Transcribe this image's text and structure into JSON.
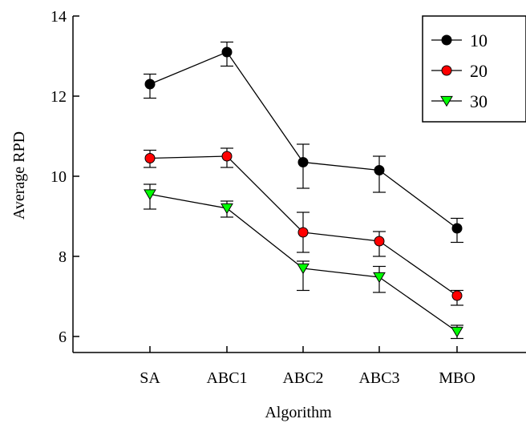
{
  "chart_data": {
    "type": "line",
    "xlabel": "Algorithm",
    "ylabel": "Average RPD",
    "categories": [
      "SA",
      "ABC1",
      "ABC2",
      "ABC3",
      "MBO"
    ],
    "ylim": [
      5.6,
      14
    ],
    "yticks": [
      "6",
      "8",
      "10",
      "12",
      "14"
    ],
    "grid": false,
    "legend": "top-right",
    "series": [
      {
        "name": "10",
        "marker": "circle",
        "color": "#000000",
        "values": [
          12.3,
          13.1,
          10.35,
          10.15,
          8.7
        ],
        "err_low": [
          11.95,
          12.75,
          9.7,
          9.6,
          8.35
        ],
        "err_high": [
          12.55,
          13.35,
          10.8,
          10.5,
          8.95
        ]
      },
      {
        "name": "20",
        "marker": "circle",
        "color": "#ff0000",
        "values": [
          10.45,
          10.5,
          8.6,
          8.38,
          7.02
        ],
        "err_low": [
          10.22,
          10.22,
          8.1,
          8.0,
          6.78
        ],
        "err_high": [
          10.65,
          10.7,
          9.1,
          8.62,
          7.15
        ]
      },
      {
        "name": "30",
        "marker": "triangle-down",
        "color": "#00ff00",
        "values": [
          9.55,
          9.2,
          7.7,
          7.48,
          6.12
        ],
        "err_low": [
          9.18,
          8.98,
          7.15,
          7.1,
          5.95
        ],
        "err_high": [
          9.8,
          9.38,
          7.88,
          7.75,
          6.28
        ]
      }
    ]
  }
}
